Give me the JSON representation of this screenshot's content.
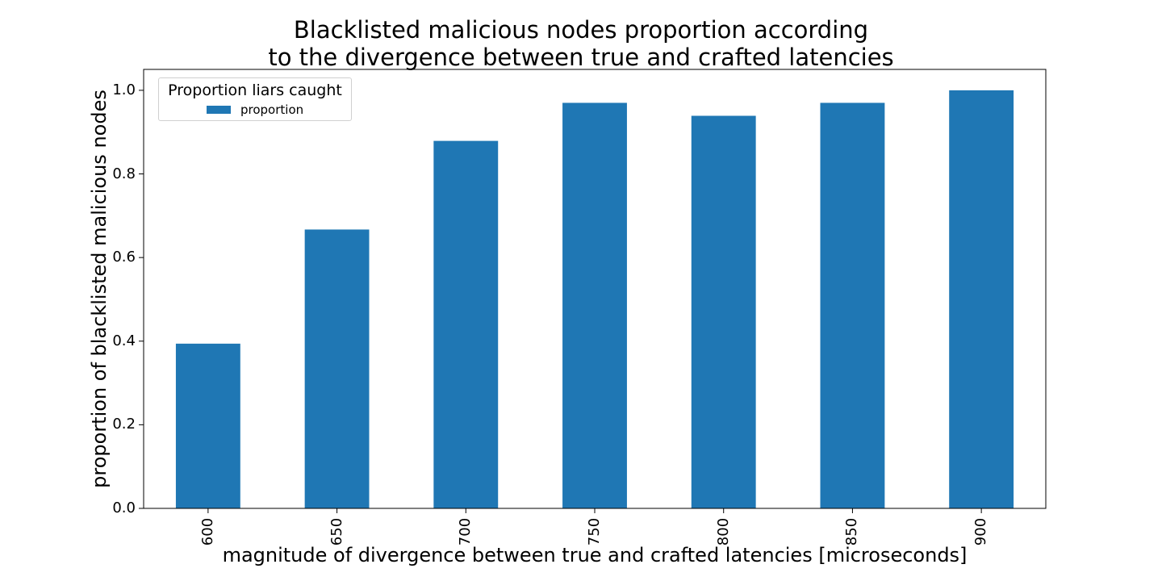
{
  "chart_data": {
    "type": "bar",
    "title_lines": [
      "Blacklisted malicious nodes proportion according",
      "to the divergence between true and crafted latencies"
    ],
    "xlabel": "magnitude of divergence between true and crafted latencies [microseconds]",
    "ylabel": "proportion of blacklisted malicious nodes",
    "categories": [
      "600",
      "650",
      "700",
      "750",
      "800",
      "850",
      "900"
    ],
    "series": [
      {
        "name": "proportion",
        "values": [
          0.394,
          0.667,
          0.879,
          0.97,
          0.939,
          0.97,
          1.0
        ],
        "color": "#1f77b4"
      }
    ],
    "ylim": [
      0,
      1.05
    ],
    "yticks": [
      0.0,
      0.2,
      0.4,
      0.6,
      0.8,
      1.0
    ],
    "ytick_labels": [
      "0.0",
      "0.2",
      "0.4",
      "0.6",
      "0.8",
      "1.0"
    ],
    "legend": {
      "title": "Proportion liars caught",
      "placement": "top-left"
    },
    "grid": false
  }
}
